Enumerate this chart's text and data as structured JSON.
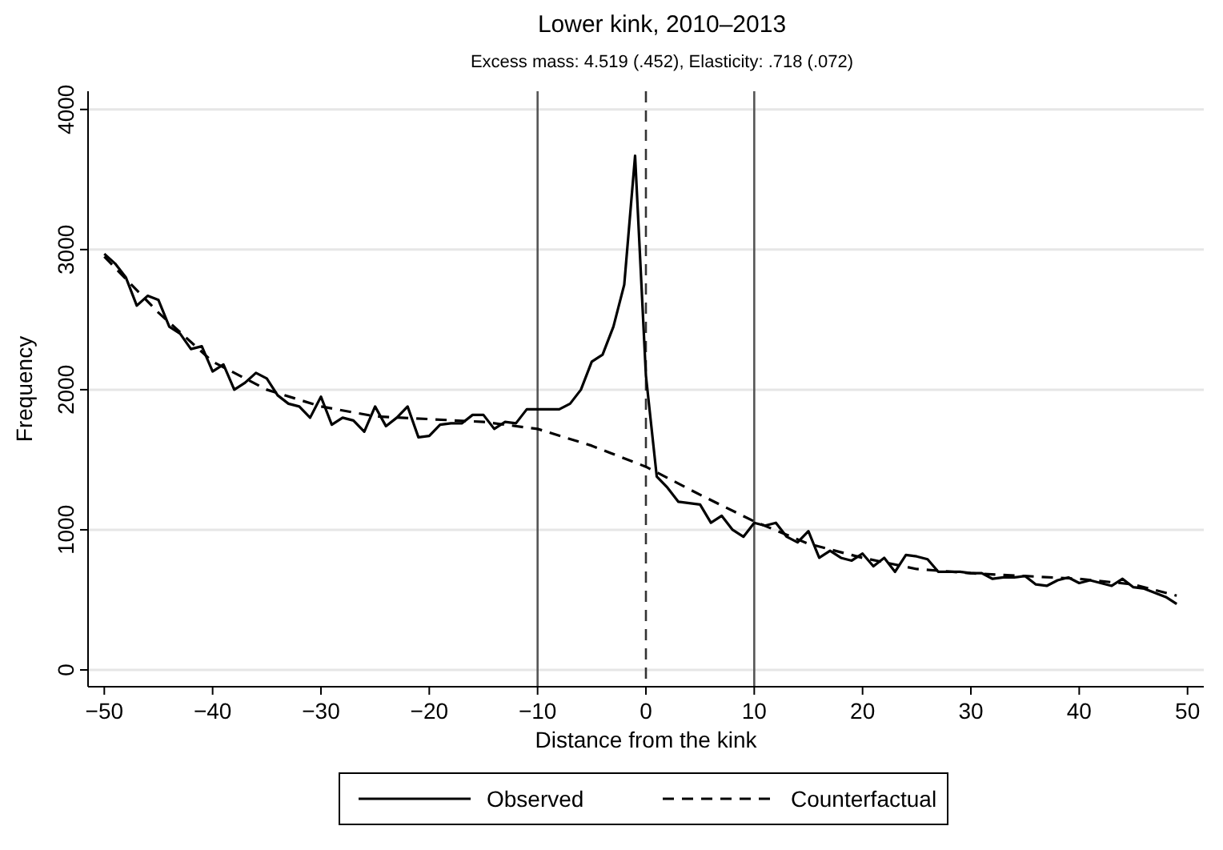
{
  "chart_data": {
    "type": "line",
    "title": "Lower kink, 2010–2013",
    "subtitle": "Excess mass: 4.519 (.452), Elasticity: .718 (.072)",
    "xlabel": "Distance from the kink",
    "ylabel": "Frequency",
    "xlim": [
      -51.5,
      51.5
    ],
    "xticks": [
      -50,
      -40,
      -30,
      -20,
      -10,
      0,
      10,
      20,
      30,
      40,
      50
    ],
    "ylim": [
      -120,
      4130
    ],
    "yticks": [
      0,
      1000,
      2000,
      3000,
      4000
    ],
    "grid": "y",
    "legend": "bottom",
    "marker": "none",
    "series": [
      {
        "name": "Observed",
        "color": "#000000",
        "line_style": "solid",
        "x": [
          -50,
          -49,
          -48,
          -47,
          -46,
          -45,
          -44,
          -43,
          -42,
          -41,
          -40,
          -39,
          -38,
          -37,
          -36,
          -35,
          -34,
          -33,
          -32,
          -31,
          -30,
          -29,
          -28,
          -27,
          -26,
          -25,
          -24,
          -23,
          -22,
          -21,
          -20,
          -19,
          -18,
          -17,
          -16,
          -15,
          -14,
          -13,
          -12,
          -11,
          -10,
          -9,
          -8,
          -7,
          -6,
          -5,
          -4,
          -3,
          -2,
          -1,
          0,
          1,
          2,
          3,
          4,
          5,
          6,
          7,
          8,
          9,
          10,
          11,
          12,
          13,
          14,
          15,
          16,
          17,
          18,
          19,
          20,
          21,
          22,
          23,
          24,
          25,
          26,
          27,
          28,
          29,
          30,
          31,
          32,
          33,
          34,
          35,
          36,
          37,
          38,
          39,
          40,
          41,
          42,
          43,
          44,
          45,
          46,
          47,
          48,
          49
        ],
        "values": [
          2970,
          2900,
          2800,
          2600,
          2670,
          2640,
          2450,
          2400,
          2290,
          2310,
          2130,
          2180,
          2000,
          2050,
          2120,
          2080,
          1960,
          1900,
          1880,
          1800,
          1950,
          1750,
          1800,
          1780,
          1700,
          1880,
          1740,
          1800,
          1880,
          1660,
          1670,
          1750,
          1760,
          1760,
          1820,
          1820,
          1720,
          1770,
          1760,
          1860,
          1860,
          1860,
          1860,
          1900,
          2000,
          2200,
          2250,
          2450,
          2750,
          3670,
          2100,
          1380,
          1300,
          1200,
          1190,
          1180,
          1050,
          1100,
          1000,
          950,
          1050,
          1030,
          1050,
          950,
          910,
          990,
          800,
          850,
          800,
          780,
          830,
          740,
          800,
          700,
          820,
          810,
          790,
          700,
          700,
          700,
          690,
          690,
          650,
          660,
          660,
          670,
          610,
          600,
          640,
          660,
          620,
          640,
          620,
          600,
          650,
          590,
          580,
          550,
          520,
          470
        ]
      },
      {
        "name": "Counterfactual",
        "color": "#000000",
        "line_style": "dashed",
        "x": [
          -50,
          -45,
          -40,
          -35,
          -30,
          -25,
          -20,
          -15,
          -10,
          -5,
          0,
          5,
          10,
          15,
          20,
          25,
          30,
          35,
          40,
          45,
          49
        ],
        "values": [
          2950,
          2550,
          2200,
          2000,
          1880,
          1810,
          1790,
          1770,
          1720,
          1600,
          1450,
          1250,
          1060,
          900,
          800,
          720,
          690,
          670,
          650,
          610,
          530
        ]
      }
    ],
    "ref_lines": [
      {
        "axis": "x",
        "value": -10,
        "color": "#555555",
        "line_style": "solid"
      },
      {
        "axis": "x",
        "value": 0,
        "color": "#333333",
        "line_style": "dashed"
      },
      {
        "axis": "x",
        "value": 10,
        "color": "#555555",
        "line_style": "solid"
      }
    ]
  }
}
